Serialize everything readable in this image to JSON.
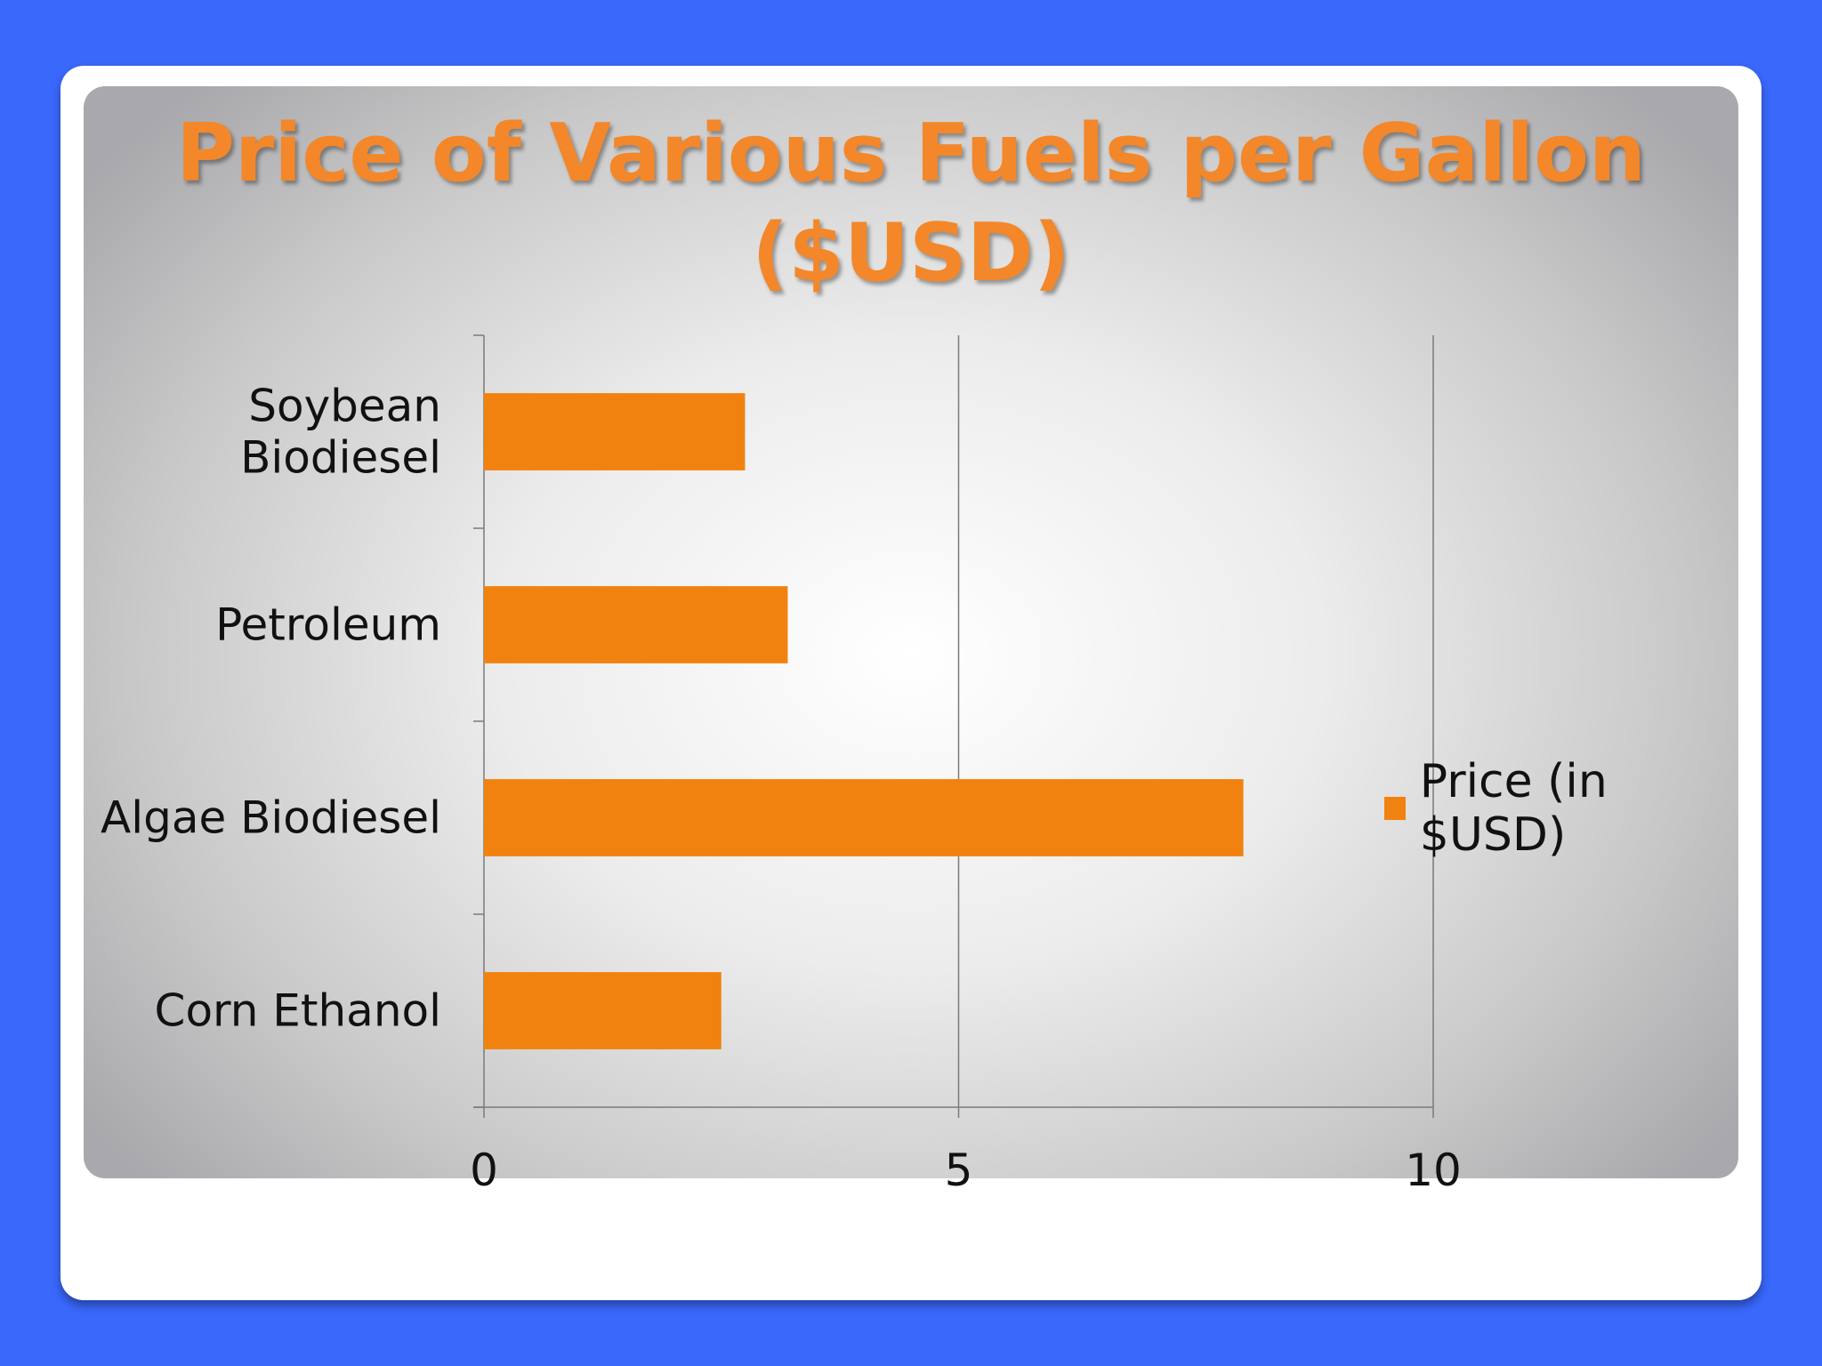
{
  "colors": {
    "background": "#3a68fb",
    "card": "#ffffff",
    "bar": "#f2820f",
    "title": "#f3872a"
  },
  "chart_data": {
    "type": "bar",
    "orientation": "horizontal",
    "title": "Price of Various Fuels per Gallon ($USD)",
    "title_lines": [
      "Price of Various Fuels per Gallon",
      "($USD)"
    ],
    "categories": [
      [
        "Soybean",
        "Biodiesel"
      ],
      [
        "Petroleum"
      ],
      [
        "Algae Biodiesel"
      ],
      [
        "Corn Ethanol"
      ]
    ],
    "series": [
      {
        "name": "Price (in $USD)",
        "values": [
          2.75,
          3.2,
          8.0,
          2.5
        ]
      }
    ],
    "xlim": [
      0,
      10
    ],
    "xticks": [
      "0",
      "5",
      "10"
    ],
    "grid": true,
    "legend_position": "right"
  }
}
